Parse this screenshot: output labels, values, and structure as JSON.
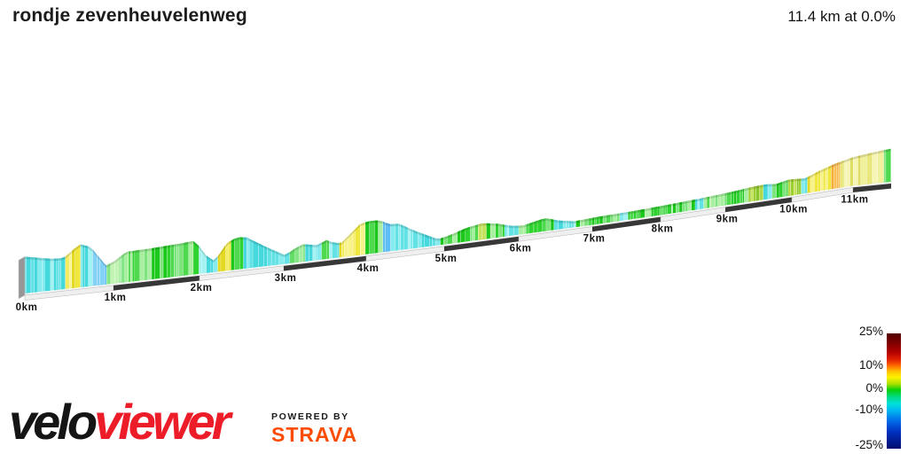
{
  "header": {
    "title": "rondje zevenheuvelenweg",
    "summary": "11.4 km at 0.0%"
  },
  "legend": {
    "labels": [
      "25%",
      "10%",
      "0%",
      "-10%",
      "-25%"
    ],
    "gradient_stops": [
      [
        "0%",
        "#520000"
      ],
      [
        "8%",
        "#7c0000"
      ],
      [
        "16%",
        "#b00000"
      ],
      [
        "23%",
        "#e22400"
      ],
      [
        "28%",
        "#fe6a00"
      ],
      [
        "33%",
        "#ffc300"
      ],
      [
        "38%",
        "#fef200"
      ],
      [
        "44%",
        "#a6e000"
      ],
      [
        "49%",
        "#0ad00a"
      ],
      [
        "55%",
        "#00da80"
      ],
      [
        "61%",
        "#00e0da"
      ],
      [
        "67%",
        "#00b6f2"
      ],
      [
        "75%",
        "#0072ea"
      ],
      [
        "85%",
        "#0033c2"
      ],
      [
        "100%",
        "#000a6e"
      ]
    ]
  },
  "footer": {
    "brand_black": "velo",
    "brand_red": "viewer",
    "powered_by": "POWERED BY",
    "strava": "STRAVA"
  },
  "chart_data": {
    "type": "area",
    "title": "rondje zevenheuvelenweg",
    "total_distance_km": 11.4,
    "average_gradient_label": "0.0%",
    "x_tick_labels": [
      "0km",
      "1km",
      "2km",
      "3km",
      "4km",
      "5km",
      "6km",
      "7km",
      "8km",
      "9km",
      "10km",
      "11km"
    ],
    "x_ticks_km": [
      0,
      1,
      2,
      3,
      4,
      5,
      6,
      7,
      8,
      9,
      10,
      11
    ],
    "gradient_scale_labels": [
      "25%",
      "10%",
      "0%",
      "-10%",
      "-25%"
    ],
    "elevation_profile_km_m": [
      [
        0.0,
        28
      ],
      [
        0.3,
        24
      ],
      [
        0.44,
        23.5
      ],
      [
        0.62,
        33
      ],
      [
        0.74,
        30
      ],
      [
        0.92,
        14
      ],
      [
        1.02,
        17
      ],
      [
        1.15,
        23
      ],
      [
        1.45,
        23.5
      ],
      [
        1.75,
        24.5
      ],
      [
        1.95,
        25.5
      ],
      [
        2.08,
        13
      ],
      [
        2.18,
        8
      ],
      [
        2.33,
        21
      ],
      [
        2.45,
        24.5
      ],
      [
        2.56,
        23.5
      ],
      [
        2.8,
        14
      ],
      [
        3.02,
        6
      ],
      [
        3.14,
        10.5
      ],
      [
        3.24,
        13
      ],
      [
        3.4,
        11
      ],
      [
        3.52,
        14
      ],
      [
        3.62,
        11
      ],
      [
        3.7,
        10.5
      ],
      [
        3.94,
        24
      ],
      [
        4.08,
        25
      ],
      [
        4.2,
        24
      ],
      [
        4.28,
        20.5
      ],
      [
        4.42,
        20
      ],
      [
        4.62,
        13
      ],
      [
        4.92,
        4
      ],
      [
        5.08,
        6
      ],
      [
        5.3,
        10
      ],
      [
        5.52,
        12
      ],
      [
        5.72,
        10
      ],
      [
        5.9,
        7
      ],
      [
        6.06,
        6
      ],
      [
        6.36,
        9.5
      ],
      [
        6.56,
        6
      ],
      [
        6.76,
        4
      ],
      [
        7.1,
        5
      ],
      [
        7.6,
        5.5
      ],
      [
        8.1,
        6.5
      ],
      [
        8.6,
        7.5
      ],
      [
        9.1,
        9
      ],
      [
        9.4,
        10.5
      ],
      [
        9.62,
        11
      ],
      [
        9.76,
        10
      ],
      [
        9.95,
        12
      ],
      [
        10.1,
        11.5
      ],
      [
        10.22,
        11
      ],
      [
        10.45,
        15
      ],
      [
        10.7,
        18.5
      ],
      [
        10.9,
        20.5
      ],
      [
        11.05,
        22
      ],
      [
        11.2,
        23.5
      ],
      [
        11.32,
        24.5
      ],
      [
        11.4,
        25
      ]
    ],
    "gradient_color_segments": [
      [
        0.0,
        0.44,
        "cyan"
      ],
      [
        0.44,
        0.64,
        "yellow"
      ],
      [
        0.64,
        0.78,
        "cyan"
      ],
      [
        0.78,
        0.94,
        "blue"
      ],
      [
        0.94,
        1.15,
        "lightgreen"
      ],
      [
        1.15,
        1.98,
        "green"
      ],
      [
        1.98,
        2.2,
        "cyan"
      ],
      [
        2.2,
        2.38,
        "yellow"
      ],
      [
        2.38,
        2.54,
        "green"
      ],
      [
        2.54,
        3.06,
        "cyan"
      ],
      [
        3.06,
        3.26,
        "lightgreen"
      ],
      [
        3.26,
        3.46,
        "cyan"
      ],
      [
        3.46,
        3.56,
        "green"
      ],
      [
        3.56,
        3.68,
        "cyan"
      ],
      [
        3.68,
        3.96,
        "yellow"
      ],
      [
        3.96,
        4.22,
        "green"
      ],
      [
        4.22,
        4.32,
        "blue"
      ],
      [
        4.32,
        4.96,
        "cyan"
      ],
      [
        4.96,
        5.44,
        "green"
      ],
      [
        5.44,
        5.58,
        "olive"
      ],
      [
        5.58,
        5.8,
        "green"
      ],
      [
        5.8,
        6.02,
        "cyan"
      ],
      [
        6.02,
        6.5,
        "green"
      ],
      [
        6.5,
        6.8,
        "cyan"
      ],
      [
        6.8,
        7.42,
        "green"
      ],
      [
        7.42,
        7.52,
        "cyan"
      ],
      [
        7.52,
        8.54,
        "green"
      ],
      [
        8.54,
        8.66,
        "cyan"
      ],
      [
        8.66,
        9.35,
        "green"
      ],
      [
        9.35,
        9.55,
        "olive"
      ],
      [
        9.55,
        9.72,
        "cyan"
      ],
      [
        9.72,
        9.96,
        "green"
      ],
      [
        9.96,
        10.14,
        "olive"
      ],
      [
        10.14,
        10.26,
        "cyan"
      ],
      [
        10.26,
        10.66,
        "yellow"
      ],
      [
        10.66,
        10.82,
        "orange"
      ],
      [
        10.82,
        11.33,
        "paleyellow"
      ],
      [
        11.33,
        11.4,
        "green"
      ]
    ],
    "palette": {
      "green": [
        "#1dc81d",
        "#2fd32f",
        "#4fd94f",
        "#7ee57e",
        "#a9efa0"
      ],
      "lightgreen": [
        "#66de66",
        "#84e684",
        "#a3eda0",
        "#c2f4b4"
      ],
      "cyan": [
        "#45d9de",
        "#63e2e6",
        "#84ebee",
        "#a4f2f2"
      ],
      "blue": [
        "#1e93ee",
        "#3ba9f2",
        "#5fbef5",
        "#82d2f8"
      ],
      "yellow": [
        "#e4d922",
        "#efe63e",
        "#f4ec62",
        "#f8f28a"
      ],
      "paleyellow": [
        "#dede62",
        "#e9e87e",
        "#f1f09c",
        "#f6f5b6"
      ],
      "orange": [
        "#f39c1a",
        "#f6ad38",
        "#f9bf58"
      ],
      "olive": [
        "#9ccf30",
        "#b2da48",
        "#c6e360",
        "#8ac52c"
      ]
    },
    "axis_colors": {
      "light": "#efefef",
      "dark": "#373737",
      "platform": "#f7f7f7",
      "end_cap": "#969696"
    },
    "legend_position": "right",
    "grid": false
  }
}
